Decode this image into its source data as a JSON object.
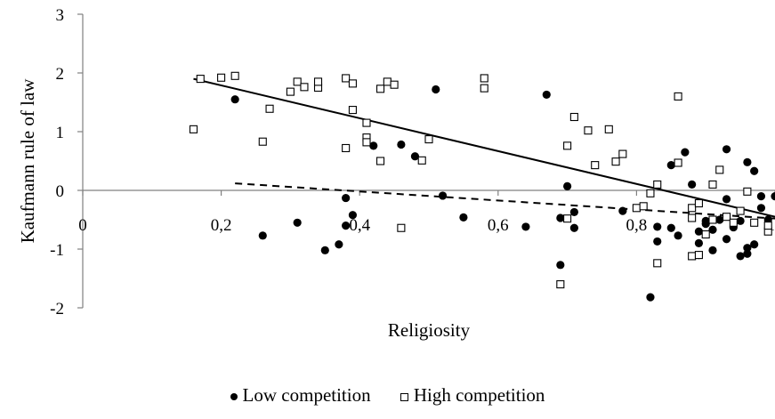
{
  "chart_data": {
    "type": "scatter",
    "title": "",
    "xlabel": "Religiosity",
    "ylabel": "Kaufmann rule of law",
    "xlim": [
      0,
      1
    ],
    "ylim": [
      -2,
      3
    ],
    "x_ticks": [
      "0",
      "0,2",
      "0,4",
      "0,6",
      "0,8",
      "1"
    ],
    "y_ticks": [
      "3",
      "2",
      "1",
      "0",
      "-1",
      "-2"
    ],
    "grid": false,
    "legend_position": "bottom",
    "series": [
      {
        "name": "Low competition",
        "marker": "filled-circle",
        "color": "#000000",
        "trendline": {
          "style": "dashed",
          "x": [
            0.22,
            1.0
          ],
          "y": [
            0.12,
            -0.48
          ]
        },
        "points": [
          [
            0.22,
            1.55
          ],
          [
            0.26,
            -0.77
          ],
          [
            0.31,
            -0.55
          ],
          [
            0.35,
            -1.02
          ],
          [
            0.37,
            -0.92
          ],
          [
            0.38,
            -0.13
          ],
          [
            0.38,
            -0.6
          ],
          [
            0.39,
            -0.42
          ],
          [
            0.42,
            0.76
          ],
          [
            0.46,
            0.78
          ],
          [
            0.48,
            0.58
          ],
          [
            0.51,
            1.72
          ],
          [
            0.52,
            -0.09
          ],
          [
            0.55,
            -0.46
          ],
          [
            0.64,
            -0.62
          ],
          [
            0.67,
            1.63
          ],
          [
            0.69,
            -0.47
          ],
          [
            0.69,
            -1.27
          ],
          [
            0.7,
            0.07
          ],
          [
            0.71,
            -0.37
          ],
          [
            0.71,
            -0.64
          ],
          [
            0.78,
            -0.35
          ],
          [
            0.82,
            -1.82
          ],
          [
            0.83,
            -0.62
          ],
          [
            0.83,
            -0.87
          ],
          [
            0.85,
            0.43
          ],
          [
            0.85,
            -0.64
          ],
          [
            0.86,
            -0.77
          ],
          [
            0.87,
            0.65
          ],
          [
            0.88,
            0.1
          ],
          [
            0.89,
            -0.7
          ],
          [
            0.89,
            -1.1
          ],
          [
            0.89,
            -0.9
          ],
          [
            0.9,
            -0.57
          ],
          [
            0.9,
            -0.52
          ],
          [
            0.91,
            -0.67
          ],
          [
            0.91,
            -1.02
          ],
          [
            0.92,
            -0.5
          ],
          [
            0.93,
            0.7
          ],
          [
            0.93,
            -0.15
          ],
          [
            0.93,
            -0.83
          ],
          [
            0.94,
            -0.63
          ],
          [
            0.95,
            -0.52
          ],
          [
            0.95,
            -1.12
          ],
          [
            0.96,
            0.48
          ],
          [
            0.96,
            -0.98
          ],
          [
            0.96,
            -1.08
          ],
          [
            0.97,
            0.33
          ],
          [
            0.97,
            -0.92
          ],
          [
            0.98,
            -0.3
          ],
          [
            0.98,
            -0.1
          ],
          [
            0.99,
            -0.5
          ],
          [
            1.0,
            -0.1
          ]
        ]
      },
      {
        "name": "High competition",
        "marker": "open-square",
        "color": "#000000",
        "trendline": {
          "style": "solid",
          "x": [
            0.16,
            1.0
          ],
          "y": [
            1.9,
            -0.45
          ]
        },
        "points": [
          [
            0.16,
            1.04
          ],
          [
            0.17,
            1.9
          ],
          [
            0.2,
            1.92
          ],
          [
            0.22,
            1.95
          ],
          [
            0.26,
            0.83
          ],
          [
            0.27,
            1.39
          ],
          [
            0.3,
            1.68
          ],
          [
            0.31,
            1.85
          ],
          [
            0.32,
            1.76
          ],
          [
            0.34,
            1.75
          ],
          [
            0.34,
            1.85
          ],
          [
            0.38,
            1.91
          ],
          [
            0.38,
            0.72
          ],
          [
            0.39,
            1.82
          ],
          [
            0.39,
            1.37
          ],
          [
            0.41,
            1.15
          ],
          [
            0.41,
            0.9
          ],
          [
            0.41,
            0.82
          ],
          [
            0.43,
            1.73
          ],
          [
            0.43,
            0.5
          ],
          [
            0.44,
            1.85
          ],
          [
            0.45,
            1.8
          ],
          [
            0.46,
            -0.64
          ],
          [
            0.49,
            0.51
          ],
          [
            0.5,
            0.87
          ],
          [
            0.58,
            1.91
          ],
          [
            0.58,
            1.74
          ],
          [
            0.69,
            -1.6
          ],
          [
            0.7,
            0.76
          ],
          [
            0.7,
            -0.48
          ],
          [
            0.71,
            1.25
          ],
          [
            0.73,
            1.02
          ],
          [
            0.74,
            0.43
          ],
          [
            0.76,
            1.04
          ],
          [
            0.77,
            0.49
          ],
          [
            0.78,
            0.62
          ],
          [
            0.8,
            -0.3
          ],
          [
            0.81,
            -0.27
          ],
          [
            0.82,
            -0.05
          ],
          [
            0.83,
            0.1
          ],
          [
            0.83,
            -1.24
          ],
          [
            0.86,
            1.6
          ],
          [
            0.86,
            0.47
          ],
          [
            0.88,
            -0.3
          ],
          [
            0.88,
            -0.47
          ],
          [
            0.88,
            -1.12
          ],
          [
            0.89,
            -0.22
          ],
          [
            0.89,
            -1.1
          ],
          [
            0.9,
            -0.75
          ],
          [
            0.91,
            -0.5
          ],
          [
            0.91,
            0.1
          ],
          [
            0.92,
            0.35
          ],
          [
            0.93,
            -0.45
          ],
          [
            0.94,
            -0.55
          ],
          [
            0.95,
            -0.35
          ],
          [
            0.96,
            -0.02
          ],
          [
            0.97,
            -0.55
          ],
          [
            0.99,
            -0.7
          ],
          [
            0.99,
            -0.6
          ]
        ]
      }
    ]
  }
}
